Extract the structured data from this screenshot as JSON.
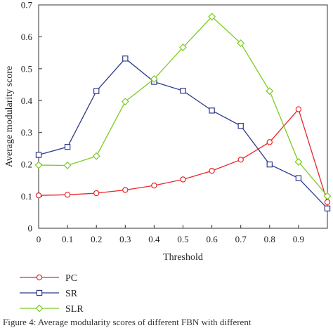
{
  "chart_data": {
    "type": "line",
    "xlabel": "Threshold",
    "ylabel": "Average modularity score",
    "x": [
      0,
      0.1,
      0.2,
      0.3,
      0.4,
      0.5,
      0.6,
      0.7,
      0.8,
      0.9,
      1.0
    ],
    "xticks": [
      "0",
      "0.1",
      "0.2",
      "0.3",
      "0.4",
      "0.5",
      "0.6",
      "0.7",
      "0.8",
      "0.9"
    ],
    "yticks": [
      "0",
      "0.1",
      "0.2",
      "0.3",
      "0.4",
      "0.5",
      "0.6",
      "0.7"
    ],
    "xlim": [
      0,
      1.0
    ],
    "ylim": [
      0,
      0.7
    ],
    "grid": false,
    "legend_position": "below",
    "series": [
      {
        "name": "PC",
        "color": "#e8262b",
        "marker": "circle",
        "values": [
          0.103,
          0.105,
          0.11,
          0.12,
          0.134,
          0.153,
          0.18,
          0.215,
          0.27,
          0.373,
          0.082
        ]
      },
      {
        "name": "SR",
        "color": "#2e3a8c",
        "marker": "square",
        "values": [
          0.23,
          0.255,
          0.43,
          0.532,
          0.459,
          0.431,
          0.369,
          0.321,
          0.2,
          0.157,
          0.062
        ]
      },
      {
        "name": "SLR",
        "color": "#7ccb21",
        "marker": "diamond",
        "values": [
          0.198,
          0.197,
          0.226,
          0.397,
          0.468,
          0.567,
          0.663,
          0.58,
          0.43,
          0.208,
          0.101
        ]
      }
    ]
  },
  "caption": "Figure 4: Average modularity scores of different FBN with different"
}
